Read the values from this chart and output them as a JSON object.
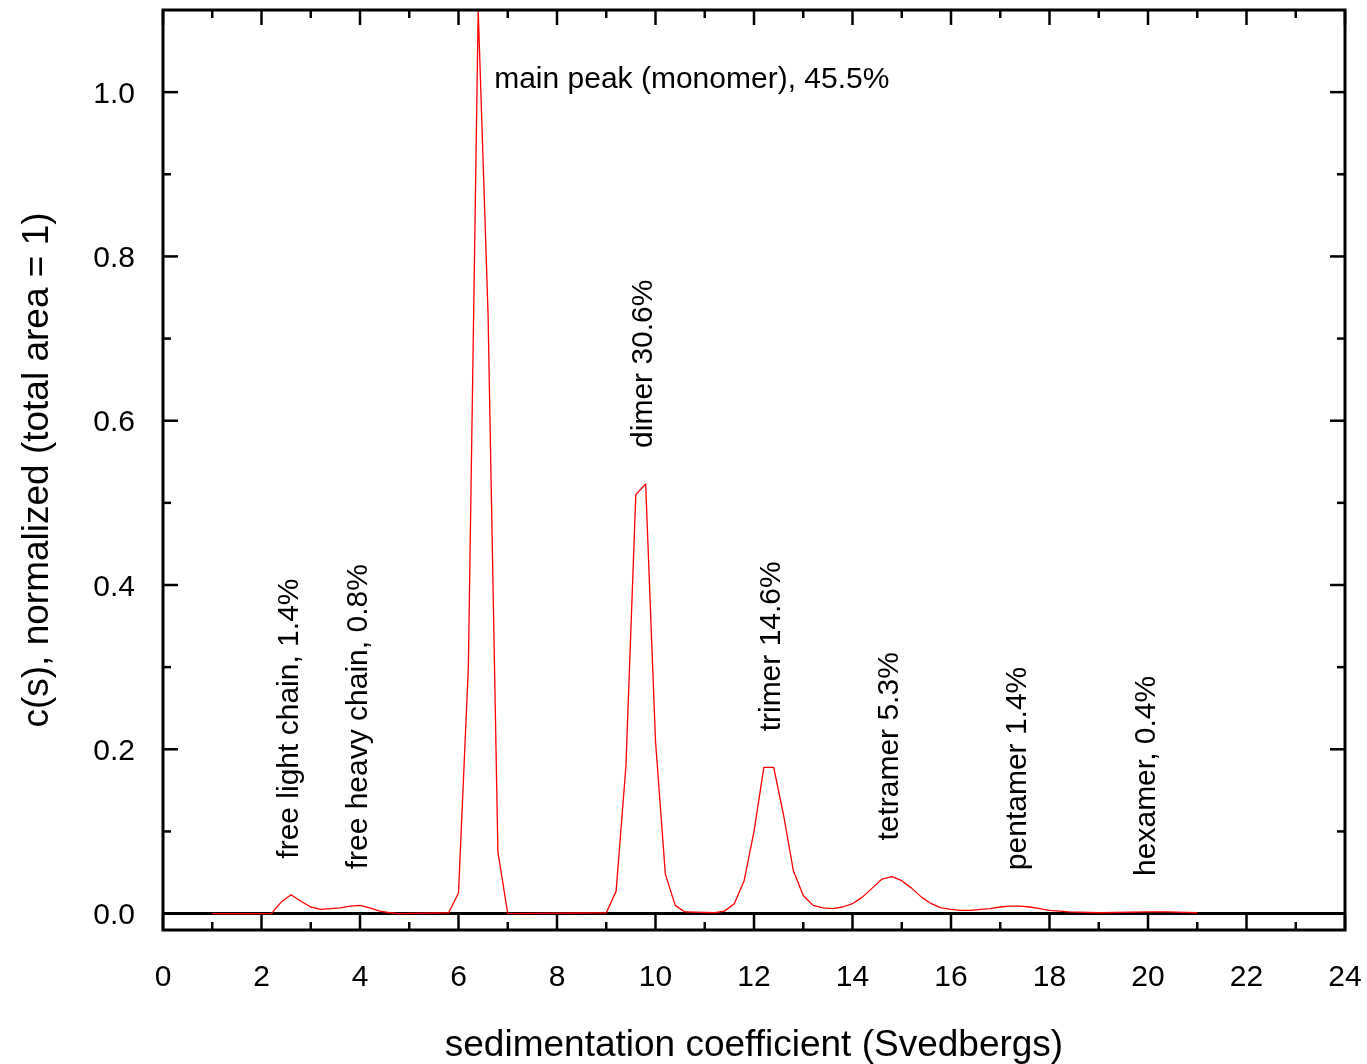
{
  "chart_data": {
    "type": "line",
    "xlabel": "sedimentation coefficient (Svedbergs)",
    "ylabel": "c(s), normalized (total area = 1)",
    "x": [
      1,
      2.2,
      2.4,
      2.6,
      2.8,
      3,
      3.2,
      3.4,
      3.6,
      3.8,
      4,
      4.2,
      4.4,
      4.6,
      4.8,
      5.8,
      6,
      6.2,
      6.4,
      6.6,
      6.8,
      7,
      9,
      9.2,
      9.4,
      9.6,
      9.8,
      10,
      10.2,
      10.4,
      10.6,
      11.2,
      11.4,
      11.6,
      11.8,
      12,
      12.2,
      12.4,
      12.6,
      12.8,
      13,
      13.2,
      13.4,
      13.6,
      13.8,
      14,
      14.2,
      14.4,
      14.6,
      14.8,
      15,
      15.2,
      15.4,
      15.6,
      15.8,
      16,
      16.2,
      16.4,
      16.6,
      16.8,
      17,
      17.2,
      17.4,
      17.6,
      17.8,
      18,
      18.4,
      19,
      20,
      20.4,
      21
    ],
    "series": [
      {
        "color": "#ff0000",
        "values": [
          0,
          0,
          0.014,
          0.023,
          0.015,
          0.008,
          0.005,
          0.006,
          0.007,
          0.009,
          0.01,
          0.007,
          0.003,
          0.001,
          0,
          0.001,
          0.025,
          0.3,
          1.1,
          0.73,
          0.075,
          0,
          0.001,
          0.027,
          0.18,
          0.51,
          0.523,
          0.21,
          0.048,
          0.01,
          0.002,
          0.001,
          0.003,
          0.012,
          0.04,
          0.1,
          0.178,
          0.178,
          0.12,
          0.052,
          0.022,
          0.01,
          0.007,
          0.006,
          0.008,
          0.012,
          0.02,
          0.031,
          0.042,
          0.045,
          0.04,
          0.031,
          0.02,
          0.012,
          0.007,
          0.005,
          0.004,
          0.004,
          0.005,
          0.006,
          0.008,
          0.009,
          0.009,
          0.008,
          0.006,
          0.004,
          0.002,
          0.001,
          0.002,
          0.002,
          0.001
        ]
      }
    ],
    "xlim": [
      0,
      24
    ],
    "xticks": [
      0,
      {
        "value": 1,
        "label": null
      },
      2,
      {
        "value": 3,
        "label": null
      },
      4,
      {
        "value": 5,
        "label": null
      },
      6,
      {
        "value": 7,
        "label": null
      },
      8,
      {
        "value": 9,
        "label": null
      },
      10,
      {
        "value": 11,
        "label": null
      },
      12,
      {
        "value": 13,
        "label": null
      },
      14,
      {
        "value": 15,
        "label": null
      },
      16,
      {
        "value": 17,
        "label": null
      },
      18,
      {
        "value": 19,
        "label": null
      },
      20,
      {
        "value": 21,
        "label": null
      },
      22,
      {
        "value": 23,
        "label": null
      },
      24
    ],
    "ylim": [
      -0.02,
      1.1
    ],
    "yticks": [
      {
        "value": 0,
        "label": "0.0"
      },
      {
        "value": 0.1,
        "label": null
      },
      0.2,
      {
        "value": 0.3,
        "label": null
      },
      0.4,
      {
        "value": 0.5,
        "label": null
      },
      0.6,
      {
        "value": 0.7,
        "label": null
      },
      0.8,
      {
        "value": 0.9,
        "label": null
      },
      {
        "value": 1,
        "label": "1.0"
      }
    ],
    "grid": false,
    "marker": "none",
    "line_style": "solid",
    "ref_lines": [
      {
        "axis": "y",
        "value": 0,
        "color": "#000000"
      }
    ],
    "annotations": [
      {
        "text": "main peak (monomer), 45.5%",
        "x": 6.4,
        "y": 1.1
      },
      {
        "text": "free light chain, 1.4%",
        "x": 2.6,
        "y": 0.023
      },
      {
        "text": "free heavy chain, 0.8%",
        "x": 4,
        "y": 0.01
      },
      {
        "text": "dimer 30.6%",
        "x": 9.8,
        "y": 0.523
      },
      {
        "text": "trimer 14.6%",
        "x": 12.4,
        "y": 0.178
      },
      {
        "text": "tetramer 5.3%",
        "x": 14.8,
        "y": 0.045
      },
      {
        "text": "pentamer 1.4%",
        "x": 17.4,
        "y": 0.009
      },
      {
        "text": "hexamer, 0.4%",
        "x": 20,
        "y": 0.002
      }
    ]
  }
}
